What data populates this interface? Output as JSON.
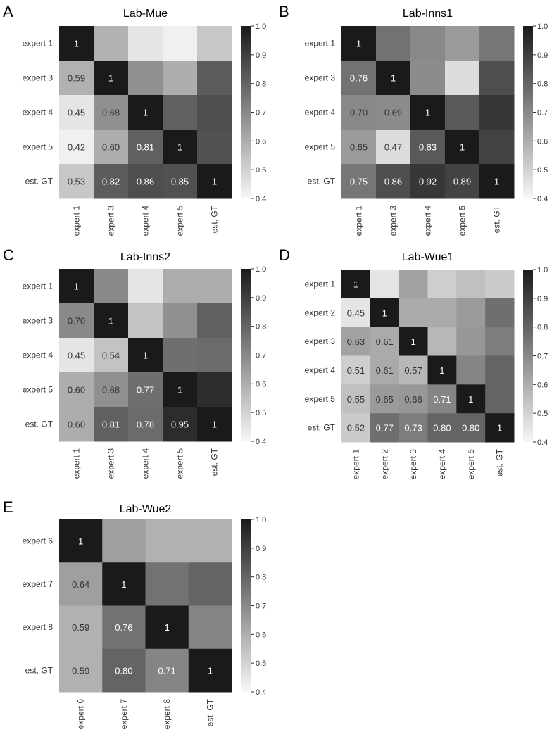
{
  "colors": {
    "low": "#ffffff",
    "high": "#000000",
    "text_dark": "#333333",
    "text_light": "#ffffff"
  },
  "chart_data": [
    {
      "type": "heatmap",
      "panel": "A",
      "title": "Lab-Mue",
      "labels": [
        "expert 1",
        "expert 3",
        "expert 4",
        "expert 5",
        "est. GT"
      ],
      "values": [
        [
          1,
          0.59,
          0.45,
          0.42,
          0.53
        ],
        [
          0.59,
          1,
          0.68,
          0.6,
          0.82
        ],
        [
          0.45,
          0.68,
          1,
          0.81,
          0.86
        ],
        [
          0.42,
          0.6,
          0.81,
          1,
          0.85
        ],
        [
          0.53,
          0.82,
          0.86,
          0.85,
          1
        ]
      ],
      "annotated": "lower",
      "colorbar": {
        "range": [
          0.4,
          1.0
        ],
        "ticks": [
          "0.4",
          "0.5",
          "0.6",
          "0.7",
          "0.8",
          "0.9",
          "1.0"
        ]
      }
    },
    {
      "type": "heatmap",
      "panel": "B",
      "title": "Lab-Inns1",
      "labels": [
        "expert 1",
        "expert 3",
        "expert 4",
        "expert 5",
        "est. GT"
      ],
      "values": [
        [
          1,
          0.76,
          0.7,
          0.65,
          0.75
        ],
        [
          0.76,
          1,
          0.69,
          0.47,
          0.86
        ],
        [
          0.7,
          0.69,
          1,
          0.83,
          0.92
        ],
        [
          0.65,
          0.47,
          0.83,
          1,
          0.89
        ],
        [
          0.75,
          0.86,
          0.92,
          0.89,
          1
        ]
      ],
      "annotated": "lower",
      "colorbar": {
        "range": [
          0.4,
          1.0
        ],
        "ticks": [
          "0.4",
          "0.5",
          "0.6",
          "0.7",
          "0.8",
          "0.9",
          "1.0"
        ]
      }
    },
    {
      "type": "heatmap",
      "panel": "C",
      "title": "Lab-Inns2",
      "labels": [
        "expert 1",
        "expert 3",
        "expert 4",
        "expert 5",
        "est. GT"
      ],
      "values": [
        [
          1,
          0.7,
          0.45,
          0.6,
          0.6
        ],
        [
          0.7,
          1,
          0.54,
          0.68,
          0.81
        ],
        [
          0.45,
          0.54,
          1,
          0.77,
          0.78
        ],
        [
          0.6,
          0.68,
          0.77,
          1,
          0.95
        ],
        [
          0.6,
          0.81,
          0.78,
          0.95,
          1
        ]
      ],
      "annotated": "lower",
      "colorbar": {
        "range": [
          0.4,
          1.0
        ],
        "ticks": [
          "0.4",
          "0.5",
          "0.6",
          "0.7",
          "0.8",
          "0.9",
          "1.0"
        ]
      }
    },
    {
      "type": "heatmap",
      "panel": "D",
      "title": "Lab-Wue1",
      "labels": [
        "expert 1",
        "expert 2",
        "expert 3",
        "expert 4",
        "expert 5",
        "est. GT"
      ],
      "values": [
        [
          1,
          0.45,
          0.63,
          0.51,
          0.55,
          0.52
        ],
        [
          0.45,
          1,
          0.61,
          0.61,
          0.65,
          0.77
        ],
        [
          0.63,
          0.61,
          1,
          0.57,
          0.66,
          0.73
        ],
        [
          0.51,
          0.61,
          0.57,
          1,
          0.71,
          0.8
        ],
        [
          0.55,
          0.65,
          0.66,
          0.71,
          1,
          0.8
        ],
        [
          0.52,
          0.77,
          0.73,
          0.8,
          0.8,
          1
        ]
      ],
      "annotated": "lower",
      "colorbar": {
        "range": [
          0.4,
          1.0
        ],
        "ticks": [
          "0.4",
          "0.5",
          "0.6",
          "0.7",
          "0.8",
          "0.9",
          "1.0"
        ]
      }
    },
    {
      "type": "heatmap",
      "panel": "E",
      "title": "Lab-Wue2",
      "labels": [
        "expert 6",
        "expert 7",
        "expert 8",
        "est. GT"
      ],
      "values": [
        [
          1,
          0.64,
          0.59,
          0.59
        ],
        [
          0.64,
          1,
          0.76,
          0.8
        ],
        [
          0.59,
          0.76,
          1,
          0.71
        ],
        [
          0.59,
          0.8,
          0.71,
          1
        ]
      ],
      "annotated": "lower",
      "colorbar": {
        "range": [
          0.4,
          1.0
        ],
        "ticks": [
          "0.4",
          "0.5",
          "0.6",
          "0.7",
          "0.8",
          "0.9",
          "1.0"
        ]
      }
    }
  ]
}
